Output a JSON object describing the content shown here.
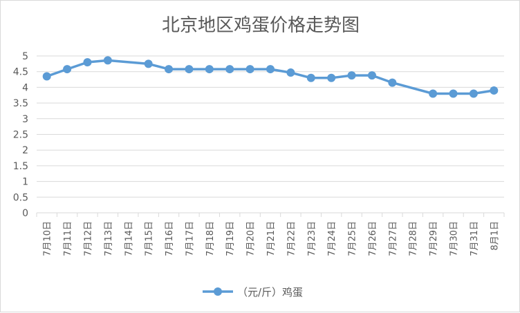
{
  "chart_data": {
    "type": "line",
    "title": "北京地区鸡蛋价格走势图",
    "xlabel": "",
    "ylabel": "",
    "categories": [
      "7月10日",
      "7月11日",
      "7月12日",
      "7月13日",
      "7月14日",
      "7月15日",
      "7月16日",
      "7月17日",
      "7月18日",
      "7月19日",
      "7月20日",
      "7月21日",
      "7月22日",
      "7月23日",
      "7月24日",
      "7月25日",
      "7月26日",
      "7月27日",
      "7月28日",
      "7月29日",
      "7月30日",
      "7月31日",
      "8月1日"
    ],
    "series": [
      {
        "name": "（元/斤）鸡蛋",
        "color": "#5b9bd5",
        "values": [
          4.35,
          4.58,
          4.8,
          4.86,
          null,
          4.75,
          4.58,
          4.58,
          4.58,
          4.58,
          4.58,
          4.58,
          4.47,
          4.3,
          4.3,
          4.38,
          4.38,
          4.15,
          null,
          3.8,
          3.8,
          3.8,
          3.9
        ]
      }
    ],
    "yticks": [
      "0",
      "0.5",
      "1",
      "1.5",
      "2",
      "2.5",
      "3",
      "3.5",
      "4",
      "4.5",
      "5"
    ],
    "ylim": [
      0,
      5
    ],
    "grid": true,
    "legend": "bottom",
    "gridline_color": "#d9d9d9"
  }
}
